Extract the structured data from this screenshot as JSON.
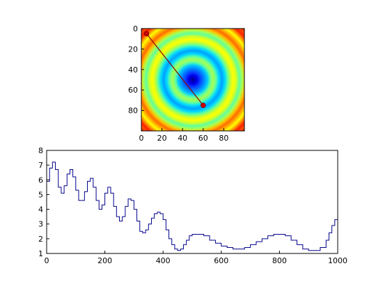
{
  "chart_data": [
    {
      "type": "heatmap",
      "title": "",
      "xlabel": "",
      "ylabel": "",
      "xlim": [
        0,
        100
      ],
      "ylim": [
        100,
        0
      ],
      "x_ticks": [
        "0",
        "20",
        "40",
        "60",
        "80"
      ],
      "y_ticks": [
        "0",
        "20",
        "40",
        "60",
        "80"
      ],
      "colormap": "jet",
      "description_values": {
        "pattern": "concentric rings",
        "center": [
          50,
          50
        ],
        "ring_wavelength": 17
      },
      "overlay_line": {
        "color": "#8b0000",
        "points": [
          [
            5,
            5
          ],
          [
            60,
            75
          ]
        ]
      }
    },
    {
      "type": "line",
      "title": "",
      "xlabel": "",
      "ylabel": "",
      "xlim": [
        0,
        1000
      ],
      "ylim": [
        1,
        8
      ],
      "x_ticks": [
        "0",
        "200",
        "400",
        "600",
        "800",
        "1000"
      ],
      "y_ticks": [
        "1",
        "2",
        "3",
        "4",
        "5",
        "6",
        "7",
        "8"
      ],
      "series": [
        {
          "color": "#00008b",
          "x": [
            0,
            10,
            20,
            30,
            40,
            50,
            60,
            70,
            80,
            90,
            100,
            110,
            120,
            130,
            140,
            150,
            160,
            170,
            180,
            190,
            200,
            210,
            220,
            230,
            240,
            250,
            260,
            270,
            280,
            290,
            300,
            310,
            320,
            330,
            340,
            350,
            360,
            370,
            380,
            390,
            400,
            410,
            420,
            430,
            440,
            450,
            460,
            470,
            480,
            490,
            500,
            520,
            540,
            560,
            580,
            600,
            620,
            640,
            660,
            680,
            700,
            720,
            740,
            760,
            780,
            800,
            820,
            840,
            860,
            880,
            900,
            920,
            940,
            960,
            970,
            980,
            990,
            1000
          ],
          "values": [
            5.9,
            6.8,
            7.2,
            6.7,
            5.5,
            5.1,
            5.6,
            6.4,
            6.7,
            6.2,
            5.3,
            4.6,
            4.6,
            5.2,
            5.9,
            6.1,
            5.5,
            4.6,
            4.0,
            4.3,
            5.1,
            5.5,
            5.1,
            4.2,
            3.5,
            3.2,
            3.5,
            4.2,
            4.7,
            4.6,
            4.0,
            3.2,
            2.5,
            2.4,
            2.6,
            3.0,
            3.4,
            3.7,
            3.8,
            3.7,
            3.3,
            2.6,
            2.0,
            1.6,
            1.3,
            1.2,
            1.3,
            1.6,
            1.9,
            2.2,
            2.3,
            2.3,
            2.2,
            1.9,
            1.7,
            1.5,
            1.4,
            1.3,
            1.3,
            1.4,
            1.6,
            1.8,
            2.0,
            2.2,
            2.3,
            2.3,
            2.2,
            1.9,
            1.6,
            1.3,
            1.2,
            1.2,
            1.4,
            1.9,
            2.4,
            2.9,
            3.3,
            3.6
          ]
        }
      ]
    }
  ]
}
